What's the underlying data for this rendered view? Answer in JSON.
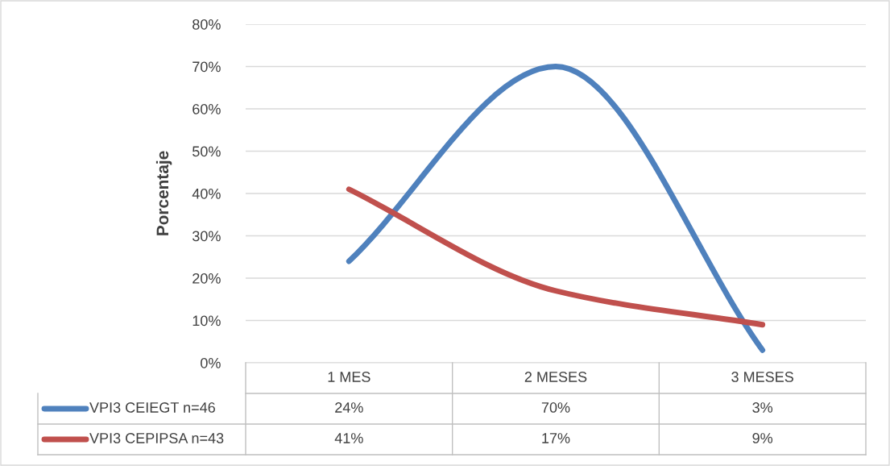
{
  "chart_data": {
    "type": "line",
    "ylabel": "Porcentaje",
    "categories": [
      "1 MES",
      "2 MESES",
      "3 MESES"
    ],
    "series": [
      {
        "name": "VPI3 CEIEGT n=46",
        "color": "#4f81bd",
        "values": [
          24,
          70,
          3
        ],
        "value_labels": [
          "24%",
          "70%",
          "3%"
        ]
      },
      {
        "name": "VPI3 CEPIPSA n=43",
        "color": "#c0504d",
        "values": [
          41,
          17,
          9
        ],
        "value_labels": [
          "41%",
          "17%",
          "9%"
        ]
      }
    ],
    "ylim": [
      0,
      80
    ],
    "yticks": [
      {
        "value": 0,
        "label": "0%"
      },
      {
        "value": 10,
        "label": "10%"
      },
      {
        "value": 20,
        "label": "20%"
      },
      {
        "value": 30,
        "label": "30%"
      },
      {
        "value": 40,
        "label": "40%"
      },
      {
        "value": 50,
        "label": "50%"
      },
      {
        "value": 60,
        "label": "60%"
      },
      {
        "value": 70,
        "label": "70%"
      },
      {
        "value": 80,
        "label": "80%"
      }
    ],
    "grid": "y",
    "legend": "bottom",
    "marker": "none",
    "line_style": "solid"
  }
}
